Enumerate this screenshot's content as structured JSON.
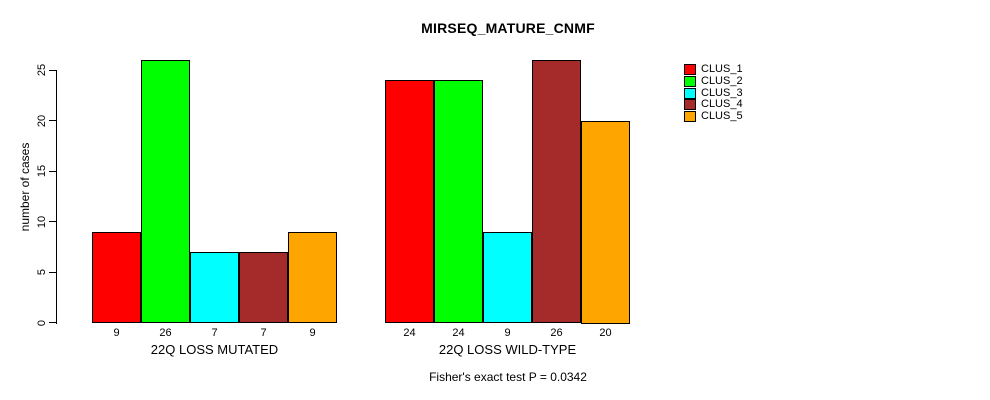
{
  "chart_data": {
    "type": "bar",
    "title": "MIRSEQ_MATURE_CNMF",
    "ylabel": "number of cases",
    "ylim": [
      0,
      26
    ],
    "yticks": [
      0,
      5,
      10,
      15,
      20,
      25
    ],
    "grid": false,
    "legend_position": "right-outside",
    "categories": [
      "22Q LOSS MUTATED",
      "22Q LOSS WILD-TYPE"
    ],
    "series": [
      {
        "name": "CLUS_1",
        "color": "#ff0000",
        "values": [
          9,
          24
        ]
      },
      {
        "name": "CLUS_2",
        "color": "#00ff00",
        "values": [
          26,
          24
        ]
      },
      {
        "name": "CLUS_3",
        "color": "#00ffff",
        "values": [
          7,
          9
        ]
      },
      {
        "name": "CLUS_4",
        "color": "#a52a2a",
        "values": [
          7,
          26
        ]
      },
      {
        "name": "CLUS_5",
        "color": "#ffa500",
        "values": [
          9,
          20
        ]
      }
    ],
    "bar_value_labels": {
      "22Q LOSS MUTATED": [
        9,
        26,
        7,
        7,
        9
      ],
      "22Q LOSS WILD-TYPE": [
        24,
        24,
        9,
        26,
        20
      ]
    },
    "annotation": "Fisher's exact test P = 0.0342"
  }
}
